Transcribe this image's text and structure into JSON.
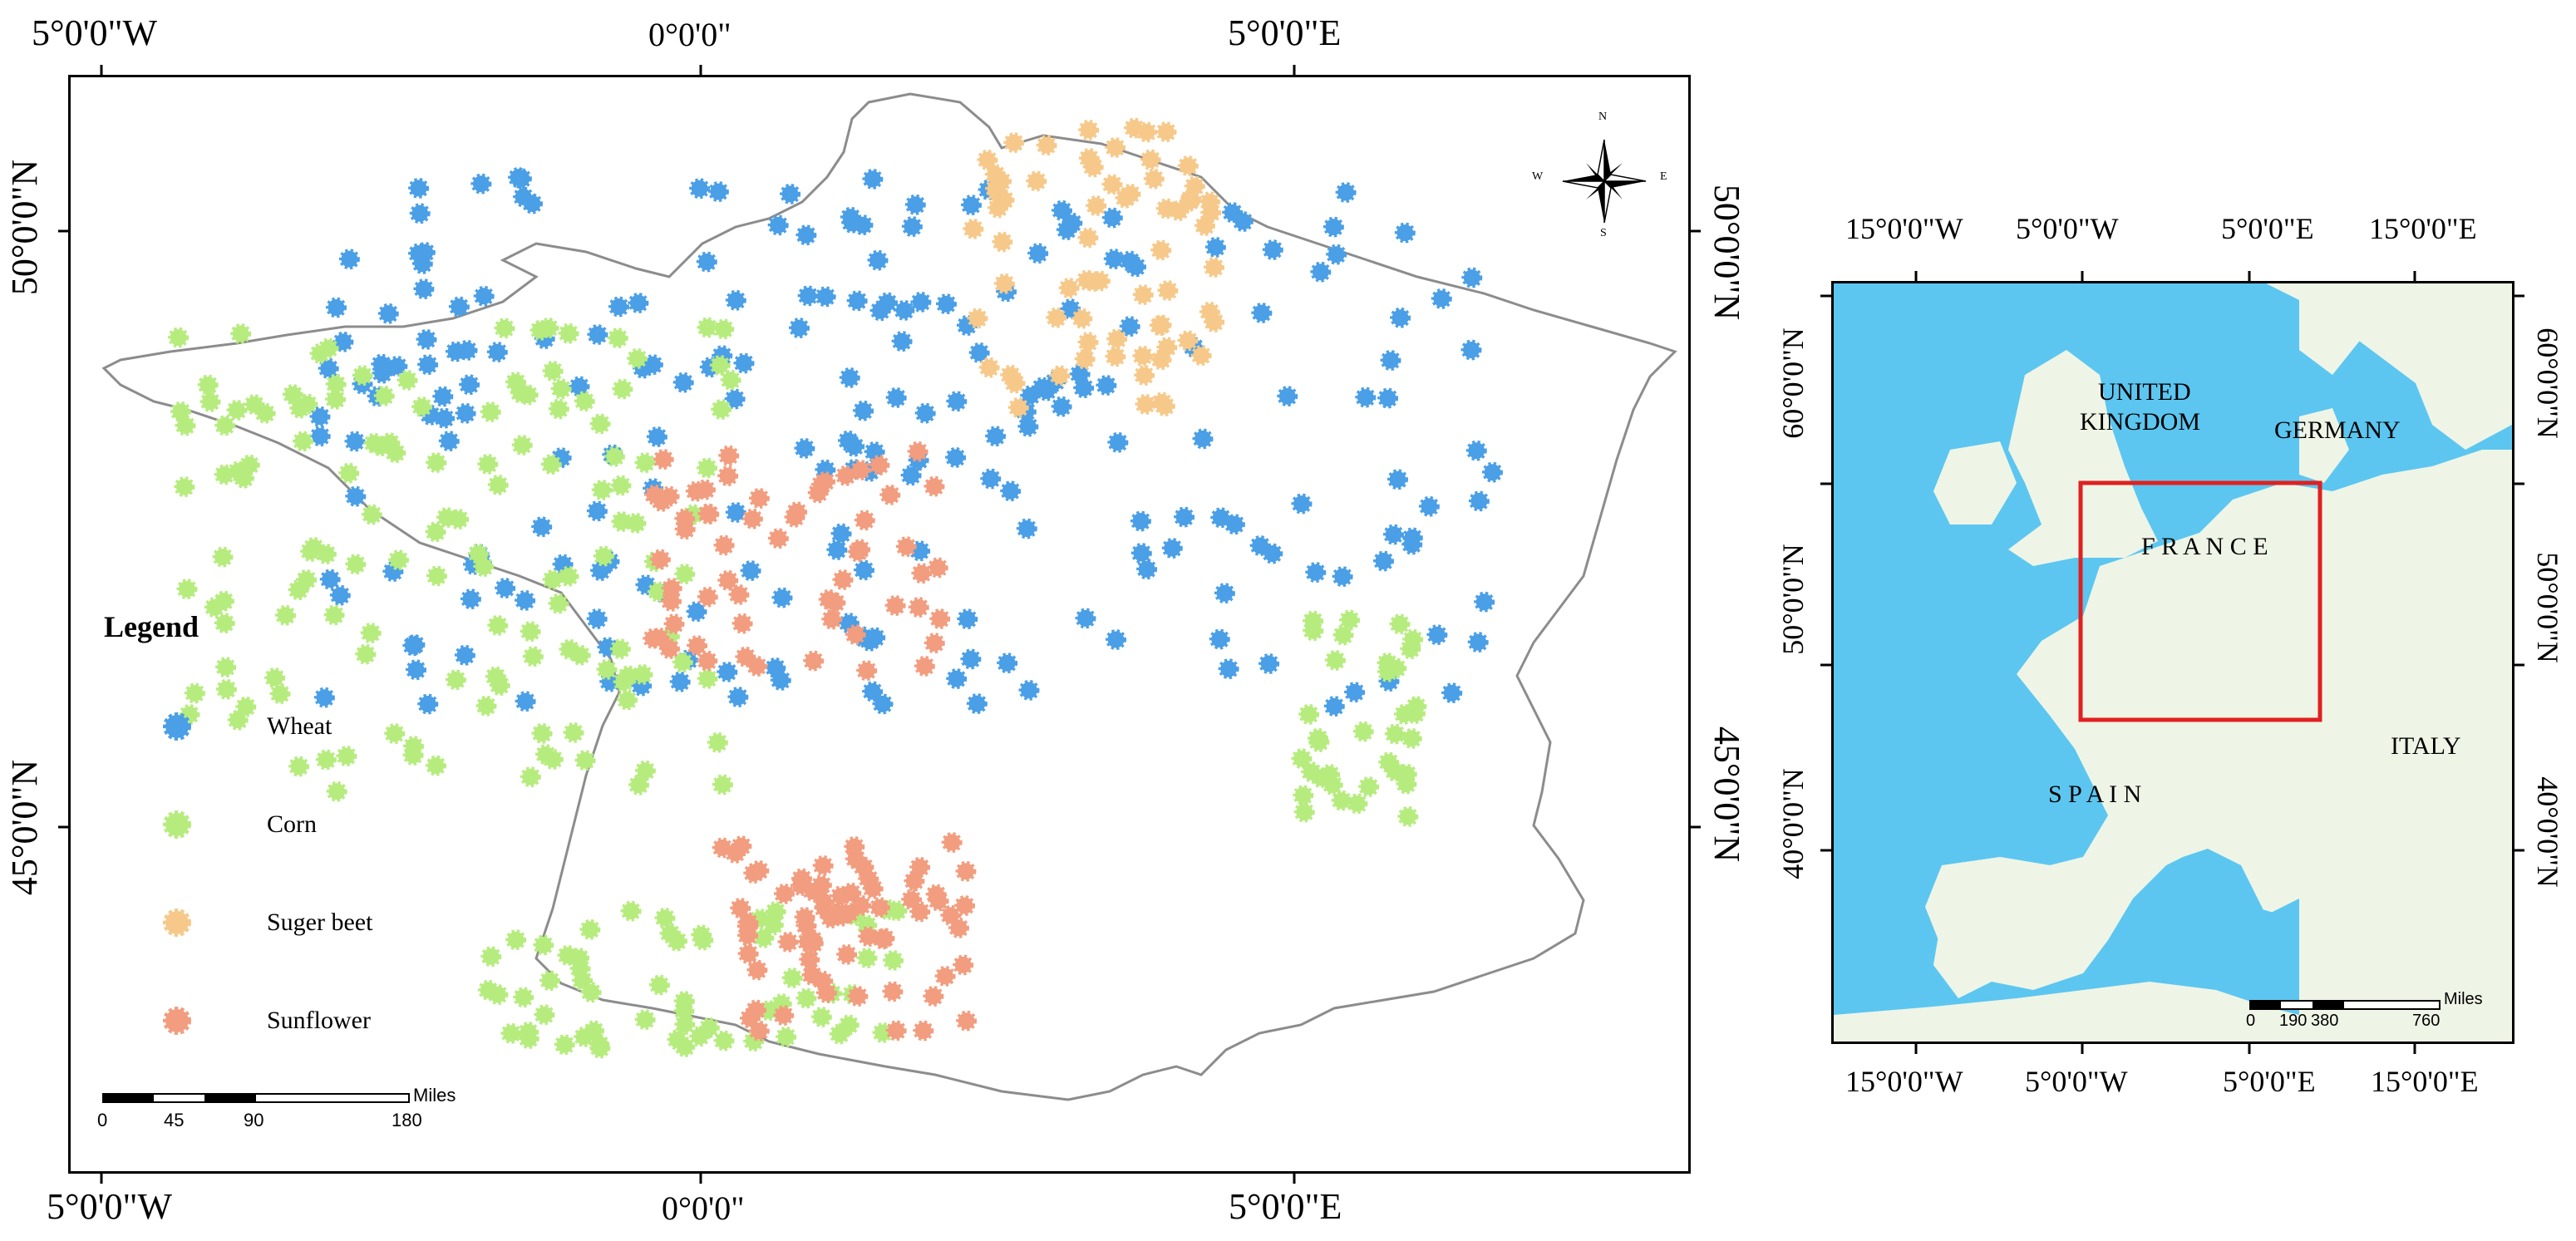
{
  "main_map": {
    "top_labels": [
      "5°0'0\"W",
      "0°0'0\"",
      "5°0'0\"E"
    ],
    "bottom_labels": [
      "5°0'0\"W",
      "0°0'0\"",
      "5°0'0\"E"
    ],
    "left_labels": [
      "50°0'0\"N",
      "45°0'0\"N"
    ],
    "right_labels": [
      "50°0'0\"N",
      "45°0'0\"N"
    ],
    "north_arrow": {
      "n": "N",
      "s": "S",
      "e": "E",
      "w": "W"
    },
    "legend": {
      "title": "Legend",
      "items": [
        {
          "label": "Wheat",
          "color": "#4a9fe6"
        },
        {
          "label": "Corn",
          "color": "#b6ec7e"
        },
        {
          "label": "Suger beet",
          "color": "#f6c98a"
        },
        {
          "label": "Sunflower",
          "color": "#f29d7f"
        }
      ]
    },
    "scale_bar": {
      "unit": "Miles",
      "ticks": [
        "0",
        "45",
        "90",
        "180"
      ]
    }
  },
  "inset_map": {
    "top_labels": [
      "15°0'0\"W",
      "5°0'0\"W",
      "5°0'0\"E",
      "15°0'0\"E"
    ],
    "bottom_labels": [
      "15°0'0\"W",
      "5°0'0\"W",
      "5°0'0\"E",
      "15°0'0\"E"
    ],
    "left_labels": [
      "60°0'0\"N",
      "50°0'0\"N",
      "40°0'0\"N"
    ],
    "right_labels": [
      "60°0'0\"N",
      "50°0'0\"N",
      "40°0'0\"N"
    ],
    "countries": [
      "UNITED",
      "KINGDOM",
      "GERMANY",
      "F R A N C E",
      "S P A I N",
      "ITALY"
    ],
    "scale_bar": {
      "unit": "Miles",
      "ticks": [
        "0",
        "190",
        "380",
        "760"
      ]
    },
    "colors": {
      "sea": "#5cc6f0",
      "land": "#eef5e6",
      "frame": "#e02020"
    }
  }
}
